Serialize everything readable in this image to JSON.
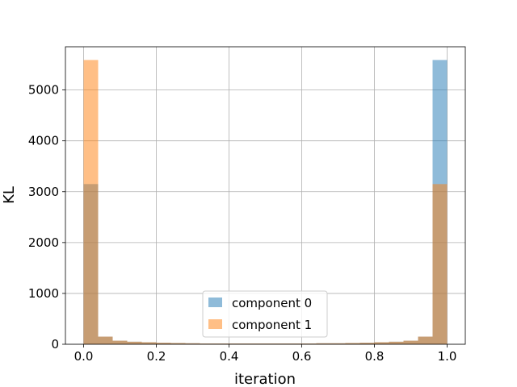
{
  "chart_data": {
    "type": "bar",
    "title": "",
    "xlabel": "iteration",
    "ylabel": "KL",
    "xlim": [
      -0.05,
      1.05
    ],
    "ylim": [
      0,
      5850
    ],
    "xticks": [
      "0.0",
      "0.2",
      "0.4",
      "0.6",
      "0.8",
      "1.0"
    ],
    "yticks": [
      "0",
      "1000",
      "2000",
      "3000",
      "4000",
      "5000"
    ],
    "grid": true,
    "legend": "lower-center",
    "bin_edges": [
      0.0,
      0.04,
      0.08,
      0.12,
      0.16,
      0.2,
      0.24,
      0.28,
      0.32,
      0.36,
      0.4,
      0.44,
      0.48,
      0.52,
      0.56,
      0.6,
      0.64,
      0.68,
      0.72,
      0.76,
      0.8,
      0.84,
      0.88,
      0.92,
      0.96,
      1.0
    ],
    "series": [
      {
        "name": "component 0",
        "color": "#1f77b4",
        "alpha": 0.5,
        "values": [
          3150,
          150,
          70,
          50,
          40,
          30,
          25,
          20,
          15,
          15,
          15,
          15,
          15,
          15,
          15,
          15,
          20,
          20,
          25,
          30,
          40,
          50,
          70,
          150,
          5590
        ]
      },
      {
        "name": "component 1",
        "color": "#ff7f0e",
        "alpha": 0.5,
        "values": [
          5590,
          150,
          70,
          50,
          40,
          30,
          25,
          20,
          15,
          15,
          15,
          15,
          15,
          15,
          15,
          15,
          20,
          20,
          25,
          30,
          40,
          50,
          70,
          150,
          3150
        ]
      }
    ]
  }
}
